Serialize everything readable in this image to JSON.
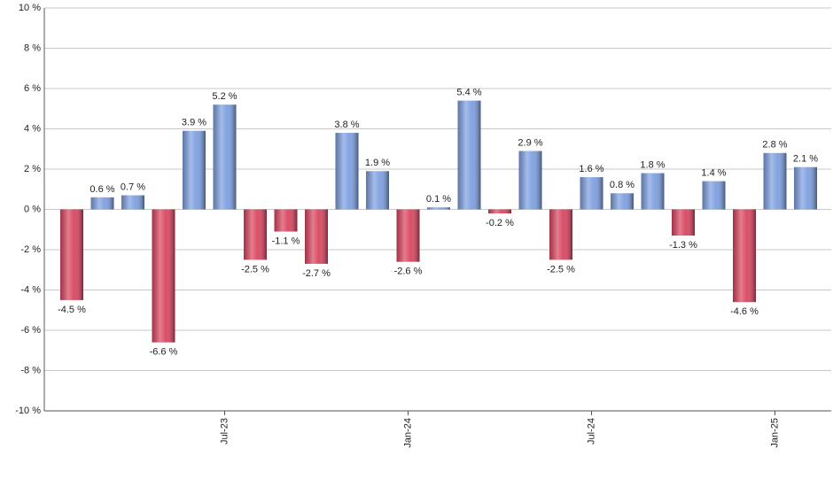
{
  "chart_data": {
    "type": "bar",
    "categories": [
      null,
      null,
      null,
      null,
      null,
      "Jul-23",
      null,
      null,
      null,
      null,
      null,
      "Jan-24",
      null,
      null,
      null,
      null,
      null,
      "Jul-24",
      null,
      null,
      null,
      null,
      null,
      "Jan-25",
      null
    ],
    "values": [
      -4.5,
      0.6,
      0.7,
      -6.6,
      3.9,
      5.2,
      -2.5,
      -1.1,
      -2.7,
      3.8,
      1.9,
      -2.6,
      0.1,
      5.4,
      -0.2,
      2.9,
      -2.5,
      1.6,
      0.8,
      1.8,
      -1.3,
      1.4,
      -4.6,
      2.8,
      2.1
    ],
    "value_labels": [
      "-4.5 %",
      "0.6 %",
      "0.7 %",
      "-6.6 %",
      "3.9 %",
      "5.2 %",
      "-2.5 %",
      "-1.1 %",
      "-2.7 %",
      "3.8 %",
      "1.9 %",
      "-2.6 %",
      "0.1 %",
      "5.4 %",
      "-0.2 %",
      "2.9 %",
      "-2.5 %",
      "1.6 %",
      "0.8 %",
      "1.8 %",
      "-1.3 %",
      "1.4 %",
      "-4.6 %",
      "2.8 %",
      "2.1 %"
    ],
    "positive_color": "#7d9fe0",
    "negative_color": "#d9455f",
    "ylim": [
      -10,
      10
    ],
    "yticks": [
      {
        "value": -10,
        "label": "-10 %"
      },
      {
        "value": -8,
        "label": "-8 %"
      },
      {
        "value": -6,
        "label": "-6 %"
      },
      {
        "value": -4,
        "label": "-4 %"
      },
      {
        "value": -2,
        "label": "-2 %"
      },
      {
        "value": 0,
        "label": "0 %"
      },
      {
        "value": 2,
        "label": "2 %"
      },
      {
        "value": 4,
        "label": "4 %"
      },
      {
        "value": 6,
        "label": "6 %"
      },
      {
        "value": 8,
        "label": "8 %"
      },
      {
        "value": 10,
        "label": "10 %"
      }
    ],
    "grid": true
  }
}
